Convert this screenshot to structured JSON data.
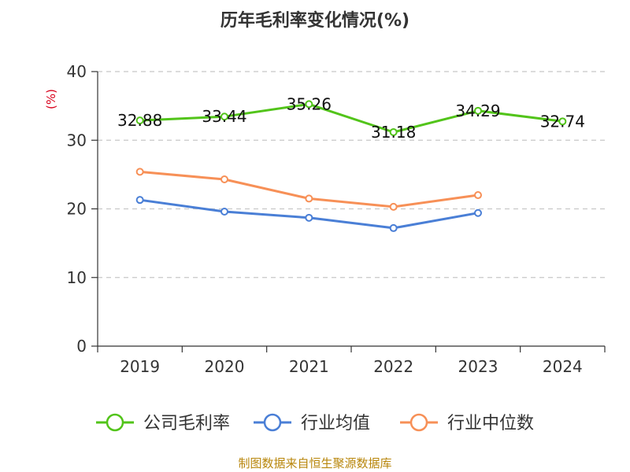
{
  "chart_data": {
    "type": "line",
    "title": "历年毛利率变化情况(%)",
    "ylabel": "(%)",
    "categories": [
      "2019",
      "2020",
      "2021",
      "2022",
      "2023",
      "2024"
    ],
    "ylim": [
      0,
      40
    ],
    "yticks": [
      "0",
      "10",
      "20",
      "30",
      "40"
    ],
    "grid": true,
    "legend_position": "bottom",
    "series": [
      {
        "name": "公司毛利率",
        "color": "#52c41a",
        "values": [
          32.88,
          33.44,
          35.26,
          31.18,
          34.29,
          32.74
        ],
        "labels": [
          "32.88",
          "33.44",
          "35.26",
          "31.18",
          "34.29",
          "32.74"
        ]
      },
      {
        "name": "行业均值",
        "color": "#4a7fd6",
        "values": [
          21.3,
          19.6,
          18.7,
          17.2,
          19.4,
          null
        ]
      },
      {
        "name": "行业中位数",
        "color": "#f79057",
        "values": [
          25.4,
          24.3,
          21.5,
          20.3,
          22.0,
          null
        ]
      }
    ]
  },
  "footer": {
    "source": "制图数据来自恒生聚源数据库"
  }
}
